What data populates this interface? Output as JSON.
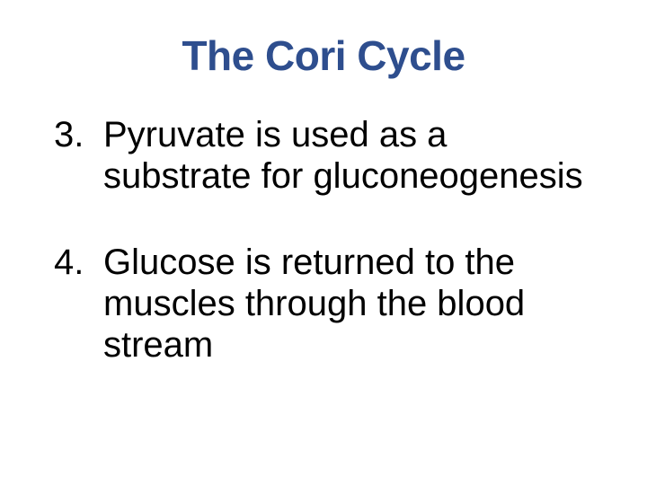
{
  "slide": {
    "title": "The Cori Cycle",
    "title_color": "#2e4e8e",
    "title_fontsize": 46,
    "body_fontsize": 40,
    "body_color": "#000000",
    "background_color": "#ffffff",
    "items": [
      {
        "number": "3.",
        "text": "Pyruvate is used as a substrate for gluconeogenesis"
      },
      {
        "number": "4.",
        "text": "Glucose is returned to the muscles through the blood stream"
      }
    ]
  }
}
